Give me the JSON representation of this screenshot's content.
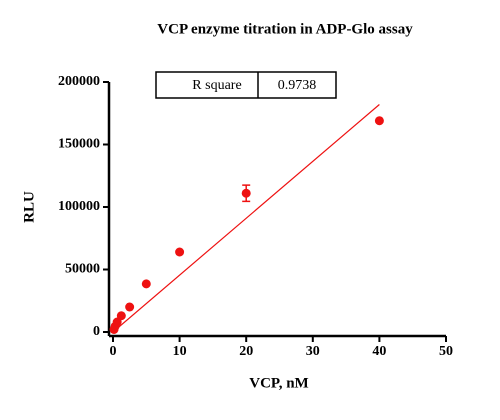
{
  "chart_data": {
    "type": "scatter",
    "title": "VCP enzyme titration in ADP-Glo assay",
    "x_label": "VCP, nM",
    "y_label": "RLU",
    "series": [
      {
        "name": "VCP",
        "color": "#ee1111",
        "x": [
          0.156,
          0.3125,
          0.625,
          1.25,
          2.5,
          5,
          10,
          20,
          40
        ],
        "values": [
          2000,
          4500,
          8000,
          13000,
          20000,
          38500,
          64000,
          111000,
          169000
        ],
        "errors": [
          null,
          null,
          null,
          null,
          null,
          null,
          null,
          6500,
          null
        ]
      }
    ],
    "fit": {
      "color": "#ee1111",
      "x": [
        0,
        40
      ],
      "values": [
        0,
        182000
      ]
    },
    "stats": {
      "label": "R square",
      "value": "0.9738"
    },
    "xlim": [
      0,
      50
    ],
    "xticks": [
      0,
      10,
      20,
      30,
      40,
      50
    ],
    "ylim": [
      0,
      200000
    ],
    "yticks": [
      0,
      50000,
      100000,
      150000,
      200000
    ]
  }
}
